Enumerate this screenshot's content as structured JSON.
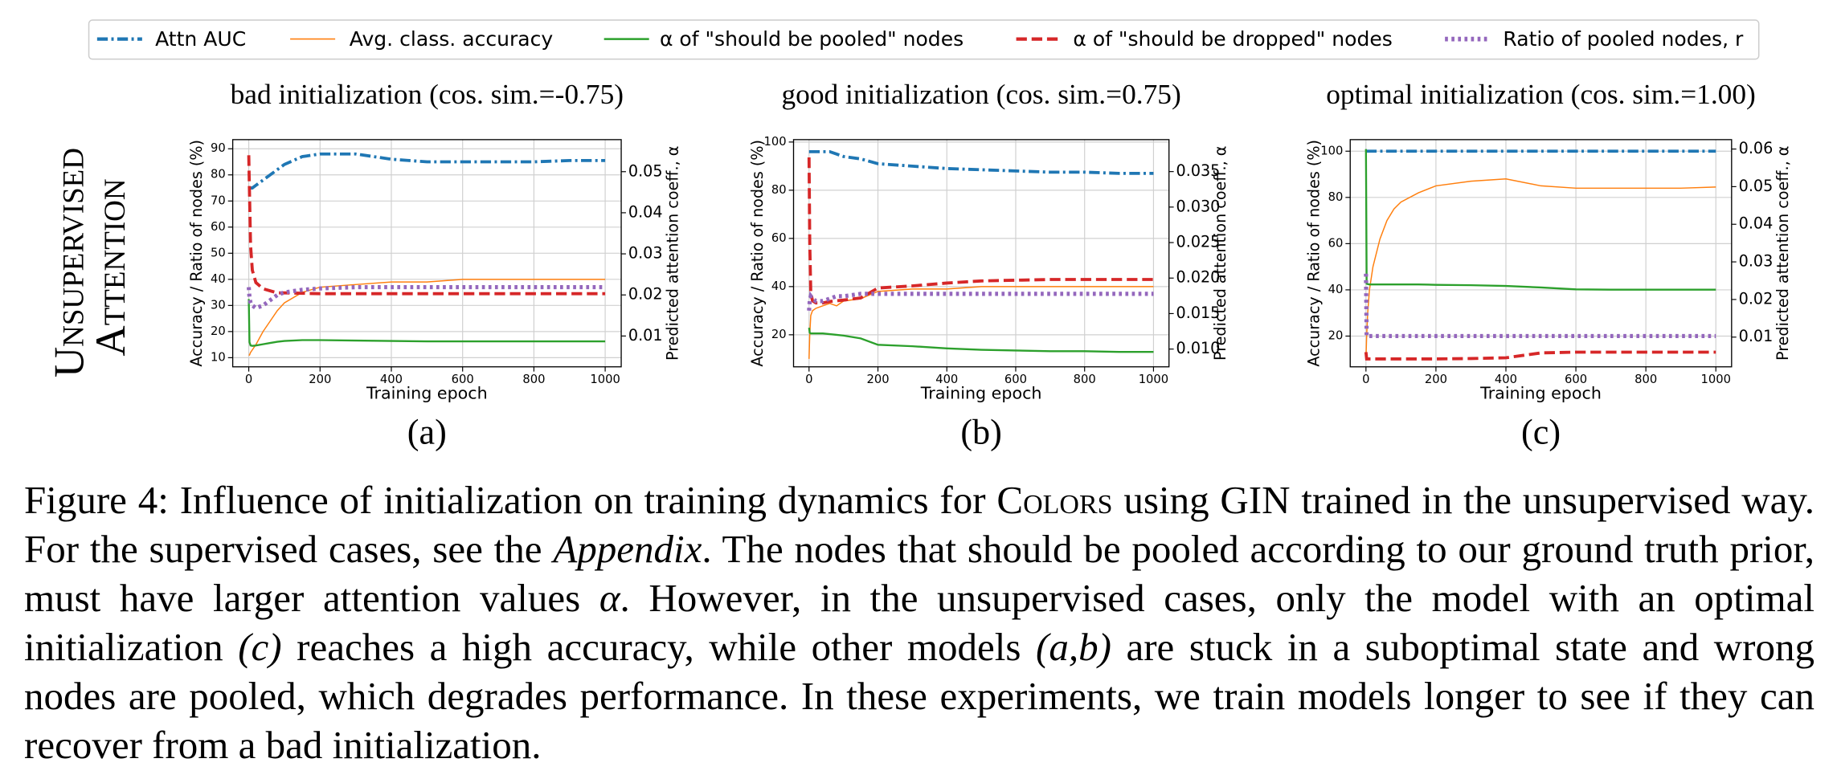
{
  "row_label": [
    "Unsupervised",
    "Attention"
  ],
  "chart_data": [
    {
      "type": "line",
      "title": "bad initialization (cos. sim.=-0.75)",
      "label": "(a)",
      "xlabel": "Training epoch",
      "ylabel": "Accuracy / Ratio of nodes (%)",
      "y2label": "Predicted attention coeff., α",
      "xlim": [
        -45,
        1045
      ],
      "xticks": [
        0,
        200,
        400,
        600,
        800,
        1000
      ],
      "ylim": [
        6.5,
        93.5
      ],
      "yticks": [
        10,
        20,
        30,
        40,
        50,
        60,
        70,
        80,
        90
      ],
      "y2lim": [
        0.0025,
        0.0578
      ],
      "y2ticks": [
        0.01,
        0.02,
        0.03,
        0.04,
        0.05
      ],
      "grid": true,
      "x": [
        0,
        2,
        5,
        10,
        20,
        40,
        60,
        80,
        100,
        150,
        200,
        300,
        400,
        500,
        600,
        700,
        800,
        900,
        1000
      ],
      "series": [
        {
          "name": "Attn AUC",
          "color": "#1f77b4",
          "linestyle": "dashdot",
          "linewidth": 2.6,
          "values": [
            75,
            75,
            75,
            75,
            76,
            78,
            80,
            82,
            84,
            87,
            88,
            88,
            86,
            85,
            85,
            85,
            85,
            85.5,
            85.5
          ]
        },
        {
          "name": "Avg. class. accuracy",
          "color": "#ff7f0e",
          "linestyle": "solid",
          "linewidth": 1,
          "values": [
            11,
            11,
            12,
            13,
            15,
            20,
            24,
            28,
            31,
            35,
            37,
            38,
            39,
            39,
            40,
            40,
            40,
            40,
            40
          ]
        },
        {
          "name": "α of \"should be pooled\" nodes",
          "color": "#2ca02c",
          "linestyle": "solid",
          "linewidth": 1.6,
          "axis": "y2",
          "values": [
            0.019,
            0.0085,
            0.0077,
            0.0076,
            0.0077,
            0.008,
            0.0083,
            0.0086,
            0.0088,
            0.009,
            0.009,
            0.0089,
            0.0088,
            0.0087,
            0.0087,
            0.0087,
            0.0087,
            0.0087,
            0.0087
          ]
        },
        {
          "name": "α of \"should be dropped\" nodes",
          "color": "#d62728",
          "linestyle": "dashed",
          "linewidth": 2.6,
          "axis": "y2",
          "values": [
            0.054,
            0.045,
            0.032,
            0.026,
            0.023,
            0.0215,
            0.021,
            0.0205,
            0.0205,
            0.0204,
            0.0203,
            0.0203,
            0.0203,
            0.0203,
            0.0203,
            0.0203,
            0.0203,
            0.0203,
            0.0203
          ]
        },
        {
          "name": "Ratio of pooled nodes, r",
          "color": "#9467bd",
          "linestyle": "dotted",
          "linewidth": 3.5,
          "values": [
            37,
            33,
            31,
            30,
            29,
            30,
            32,
            34,
            35,
            36,
            36.5,
            37,
            37,
            37,
            37,
            37,
            37,
            37,
            37
          ]
        }
      ]
    },
    {
      "type": "line",
      "title": "good initialization (cos. sim.=0.75)",
      "label": "(b)",
      "xlabel": "Training epoch",
      "ylabel": "Accuracy / Ratio of nodes (%)",
      "y2label": "Predicted attention coeff., α",
      "xlim": [
        -45,
        1045
      ],
      "xticks": [
        0,
        200,
        400,
        600,
        800,
        1000
      ],
      "ylim": [
        6.7,
        101
      ],
      "yticks": [
        20,
        40,
        60,
        80,
        100
      ],
      "y2lim": [
        0.0075,
        0.0395
      ],
      "y2ticks": [
        {
          "value": 0.01,
          "label": "0.010"
        },
        {
          "value": 0.015,
          "label": "0.015"
        },
        {
          "value": 0.02,
          "label": "0.020"
        },
        {
          "value": 0.025,
          "label": "0.025"
        },
        {
          "value": 0.03,
          "label": "0.030"
        },
        {
          "value": 0.035,
          "label": "0.035"
        }
      ],
      "grid": true,
      "x": [
        0,
        2,
        5,
        10,
        20,
        40,
        60,
        80,
        100,
        150,
        200,
        300,
        400,
        500,
        600,
        700,
        800,
        900,
        1000
      ],
      "series": [
        {
          "name": "Attn AUC",
          "color": "#1f77b4",
          "linestyle": "dashdot",
          "linewidth": 2.6,
          "values": [
            96,
            96,
            96,
            96,
            96,
            96,
            96,
            95,
            94,
            93,
            91,
            90,
            89,
            88.5,
            88,
            87.5,
            87.5,
            87,
            87
          ]
        },
        {
          "name": "Avg. class. accuracy",
          "color": "#ff7f0e",
          "linestyle": "solid",
          "linewidth": 1,
          "values": [
            10,
            20,
            28,
            30,
            31,
            32,
            33,
            32,
            34,
            35,
            38,
            39,
            39,
            40,
            40,
            40,
            40,
            40,
            40
          ]
        },
        {
          "name": "α of \"should be pooled\" nodes",
          "color": "#2ca02c",
          "linestyle": "solid",
          "linewidth": 1.6,
          "axis": "y2",
          "values": [
            0.013,
            0.0123,
            0.0122,
            0.0122,
            0.0122,
            0.0122,
            0.0121,
            0.012,
            0.0119,
            0.0115,
            0.0106,
            0.0104,
            0.0101,
            0.0099,
            0.0098,
            0.0097,
            0.0097,
            0.0096,
            0.0096
          ]
        },
        {
          "name": "α of \"should be dropped\" nodes",
          "color": "#d62728",
          "linestyle": "dashed",
          "linewidth": 2.6,
          "axis": "y2",
          "values": [
            0.037,
            0.025,
            0.018,
            0.0168,
            0.0165,
            0.0165,
            0.0167,
            0.0168,
            0.0169,
            0.0172,
            0.0186,
            0.0189,
            0.0193,
            0.0196,
            0.0197,
            0.0198,
            0.0198,
            0.0198,
            0.0198
          ]
        },
        {
          "name": "Ratio of pooled nodes, r",
          "color": "#9467bd",
          "linestyle": "dotted",
          "linewidth": 3.5,
          "values": [
            30,
            34,
            36,
            35,
            34,
            34,
            35,
            36,
            36,
            37,
            37,
            37,
            37,
            37,
            37,
            37,
            37,
            37,
            37
          ]
        }
      ]
    },
    {
      "type": "line",
      "title": "optimal initialization (cos. sim.=1.00)",
      "label": "(c)",
      "xlabel": "Training epoch",
      "ylabel": "Accuracy / Ratio of nodes (%)",
      "y2label": "Predicted attention coeff., α",
      "xlim": [
        -45,
        1045
      ],
      "xticks": [
        0,
        200,
        400,
        600,
        800,
        1000
      ],
      "ylim": [
        6.7,
        105
      ],
      "yticks": [
        20,
        40,
        60,
        80,
        100
      ],
      "y2lim": [
        0.0021,
        0.0625
      ],
      "y2ticks": [
        0.01,
        0.02,
        0.03,
        0.04,
        0.05,
        0.06
      ],
      "grid": true,
      "x": [
        0,
        2,
        5,
        10,
        20,
        40,
        60,
        80,
        100,
        150,
        200,
        300,
        400,
        500,
        600,
        700,
        800,
        900,
        1000
      ],
      "series": [
        {
          "name": "Attn AUC",
          "color": "#1f77b4",
          "linestyle": "dashdot",
          "linewidth": 2.6,
          "values": [
            100,
            100,
            100,
            100,
            100,
            100,
            100,
            100,
            100,
            100,
            100,
            100,
            100,
            100,
            100,
            100,
            100,
            100,
            100
          ]
        },
        {
          "name": "Avg. class. accuracy",
          "color": "#ff7f0e",
          "linestyle": "solid",
          "linewidth": 1,
          "values": [
            10,
            20,
            30,
            40,
            50,
            62,
            70,
            75,
            78,
            82,
            85,
            87,
            88,
            85,
            84,
            84,
            84,
            84,
            84.5
          ]
        },
        {
          "name": "α of \"should be pooled\" nodes",
          "color": "#2ca02c",
          "linestyle": "solid",
          "linewidth": 1.6,
          "axis": "y2",
          "values": [
            0.06,
            0.0242,
            0.0241,
            0.024,
            0.024,
            0.024,
            0.024,
            0.024,
            0.024,
            0.024,
            0.0239,
            0.0238,
            0.0236,
            0.0232,
            0.0227,
            0.0226,
            0.0226,
            0.0226,
            0.0226
          ]
        },
        {
          "name": "α of \"should be dropped\" nodes",
          "color": "#d62728",
          "linestyle": "dashed",
          "linewidth": 2.6,
          "axis": "y2",
          "values": [
            0.006,
            0.0042,
            0.0042,
            0.0042,
            0.0042,
            0.0042,
            0.0042,
            0.0042,
            0.0042,
            0.0042,
            0.0042,
            0.0043,
            0.0045,
            0.0058,
            0.006,
            0.006,
            0.006,
            0.006,
            0.006
          ]
        },
        {
          "name": "Ratio of pooled nodes, r",
          "color": "#9467bd",
          "linestyle": "dotted",
          "linewidth": 3.5,
          "values": [
            47,
            20,
            20,
            20,
            20,
            20,
            20,
            20,
            20,
            20,
            20,
            20,
            20,
            20,
            20,
            20,
            20,
            20,
            20
          ]
        }
      ]
    }
  ],
  "caption": [
    "Figure 4: Influence of initialization on training dynamics for ",
    "Colors",
    " using GIN trained in the unsupervised way. For the supervised cases, see the ",
    "Appendix",
    ". The nodes that should be pooled according to our ground truth prior, must have larger attention values ",
    "α",
    ". However, in the unsupervised cases, only the model with an optimal initialization ",
    "(c)",
    " reaches a high accuracy, while other models ",
    "(a,b)",
    " are stuck in a suboptimal state and wrong nodes are pooled, which degrades performance. In these experiments, we train models longer to see if they can recover from a bad initialization."
  ]
}
